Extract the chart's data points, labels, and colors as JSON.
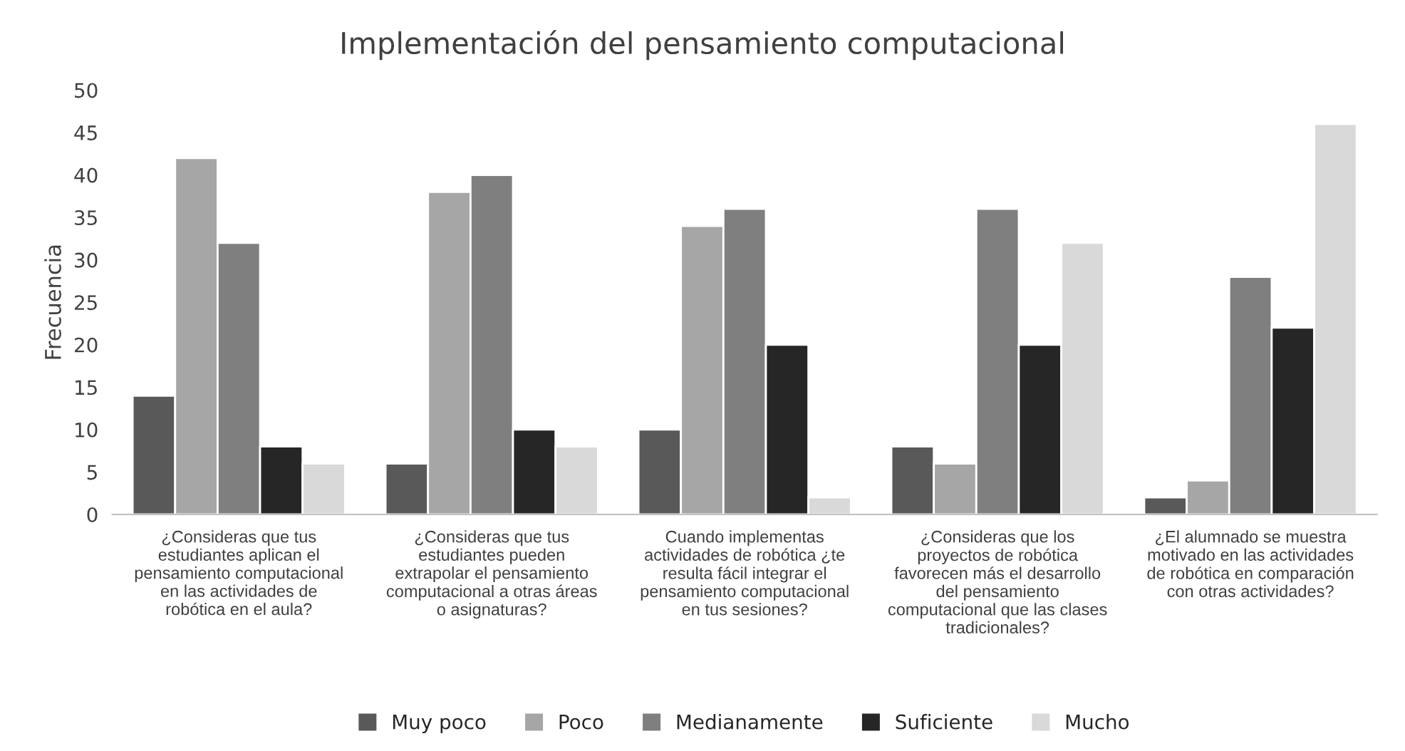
{
  "chart_data": {
    "type": "bar",
    "title": "Implementación del pensamiento computacional",
    "ylabel": "Frecuencia",
    "categories": [
      "¿Consideras que tus\nestudiantes aplican el\npensamiento computacional\nen las actividades de\nrobótica en el aula?",
      "¿Consideras que tus\nestudiantes pueden\nextrapolar el pensamiento\ncomputacional a otras áreas\no asignaturas?",
      "Cuando implementas\nactividades de robótica ¿te\nresulta fácil integrar el\npensamiento computacional\nen tus sesiones?",
      "¿Consideras que los\nproyectos de robótica\nfavorecen más el desarrollo\ndel pensamiento\ncomputacional que las clases\ntradicionales?",
      "¿El alumnado se muestra\nmotivado en las actividades\nde robótica en comparación\ncon otras actividades?"
    ],
    "series": [
      {
        "name": "Muy poco",
        "color": "#595959",
        "values": [
          14,
          6,
          10,
          8,
          2
        ]
      },
      {
        "name": "Poco",
        "color": "#a6a6a6",
        "values": [
          42,
          38,
          34,
          6,
          4
        ]
      },
      {
        "name": "Medianamente",
        "color": "#7f7f7f",
        "values": [
          32,
          40,
          36,
          36,
          28
        ]
      },
      {
        "name": "Suficiente",
        "color": "#262626",
        "values": [
          8,
          10,
          20,
          20,
          22
        ]
      },
      {
        "name": "Mucho",
        "color": "#d9d9d9",
        "values": [
          6,
          8,
          2,
          32,
          46
        ]
      }
    ],
    "ylim": [
      0,
      50
    ],
    "yticks": [
      0,
      5,
      10,
      15,
      20,
      25,
      30,
      35,
      40,
      45,
      50
    ],
    "grid": false,
    "legend": "bottom"
  }
}
